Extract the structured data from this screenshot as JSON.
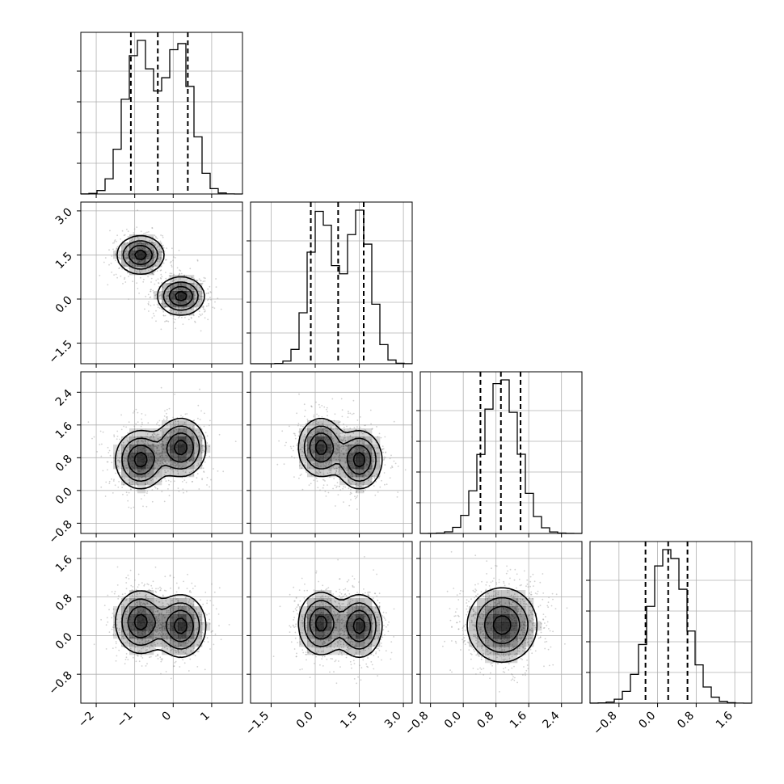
{
  "chart_data": {
    "type": "corner",
    "title": "",
    "grid": true,
    "parameters": [
      {
        "index": 0,
        "range": [
          -2.4,
          1.8
        ],
        "ticks": [
          -2,
          -1,
          0,
          1
        ],
        "tick_labels": [
          "−2",
          "−1",
          "0",
          "1"
        ],
        "modes": [
          {
            "mean": -0.9,
            "sd": 0.35,
            "weight": 0.5
          },
          {
            "mean": 0.15,
            "sd": 0.35,
            "weight": 0.5
          }
        ],
        "quantiles": [
          -1.1,
          -0.4,
          0.38
        ]
      },
      {
        "index": 1,
        "range": [
          -2.2,
          3.3
        ],
        "ticks": [
          -1.5,
          0.0,
          1.5,
          3.0
        ],
        "tick_labels": [
          "−1.5",
          "0.0",
          "1.5",
          "3.0"
        ],
        "modes": [
          {
            "mean": 0.2,
            "sd": 0.4,
            "weight": 0.5
          },
          {
            "mean": 1.5,
            "sd": 0.4,
            "weight": 0.5
          }
        ],
        "quantiles": [
          -0.15,
          0.78,
          1.65
        ]
      },
      {
        "index": 2,
        "range": [
          -1.05,
          2.9
        ],
        "ticks": [
          -0.8,
          0.0,
          0.8,
          1.6,
          2.4
        ],
        "tick_labels": [
          "−0.8",
          "0.0",
          "0.8",
          "1.6",
          "2.4"
        ],
        "modes": [
          {
            "mean": 0.92,
            "sd": 0.42,
            "weight": 1.0
          }
        ],
        "quantiles": [
          0.42,
          0.92,
          1.4
        ]
      },
      {
        "index": 3,
        "range": [
          -1.4,
          1.95
        ],
        "ticks": [
          -0.8,
          0.0,
          0.8,
          1.6
        ],
        "tick_labels": [
          "−0.8",
          "0.0",
          "0.8",
          "1.6"
        ],
        "modes": [
          {
            "mean": 0.22,
            "sd": 0.38,
            "weight": 1.0
          }
        ],
        "quantiles": [
          -0.25,
          0.22,
          0.62
        ]
      }
    ],
    "joint": [
      {
        "x": 0,
        "y": 1,
        "modes": [
          {
            "mx": -0.85,
            "my": 1.5,
            "sx": 0.3,
            "sy": 0.32,
            "rho": 0.0
          },
          {
            "mx": 0.2,
            "my": 0.1,
            "sx": 0.3,
            "sy": 0.32,
            "rho": 0.0
          }
        ]
      },
      {
        "x": 0,
        "y": 2,
        "modes": [
          {
            "mx": -0.85,
            "my": 0.75,
            "sx": 0.32,
            "sy": 0.35,
            "rho": 0.0
          },
          {
            "mx": 0.2,
            "my": 1.05,
            "sx": 0.32,
            "sy": 0.35,
            "rho": 0.0
          }
        ]
      },
      {
        "x": 1,
        "y": 2,
        "modes": [
          {
            "mx": 0.2,
            "my": 1.05,
            "sx": 0.38,
            "sy": 0.35,
            "rho": 0.0
          },
          {
            "mx": 1.5,
            "my": 0.75,
            "sx": 0.38,
            "sy": 0.35,
            "rho": 0.0
          }
        ]
      },
      {
        "x": 0,
        "y": 3,
        "modes": [
          {
            "mx": -0.85,
            "my": 0.28,
            "sx": 0.32,
            "sy": 0.32,
            "rho": 0.0
          },
          {
            "mx": 0.2,
            "my": 0.2,
            "sx": 0.32,
            "sy": 0.32,
            "rho": 0.0
          }
        ]
      },
      {
        "x": 1,
        "y": 3,
        "modes": [
          {
            "mx": 0.2,
            "my": 0.25,
            "sx": 0.38,
            "sy": 0.32,
            "rho": 0.0
          },
          {
            "mx": 1.5,
            "my": 0.2,
            "sx": 0.38,
            "sy": 0.32,
            "rho": 0.0
          }
        ]
      },
      {
        "x": 2,
        "y": 3,
        "modes": [
          {
            "mx": 0.95,
            "my": 0.22,
            "sx": 0.42,
            "sy": 0.38,
            "rho": 0.0
          }
        ]
      }
    ],
    "colors": {
      "points": "#9a9a9a",
      "density": "#000000",
      "lines": "#000000",
      "grid": "#b0b0b0"
    }
  }
}
